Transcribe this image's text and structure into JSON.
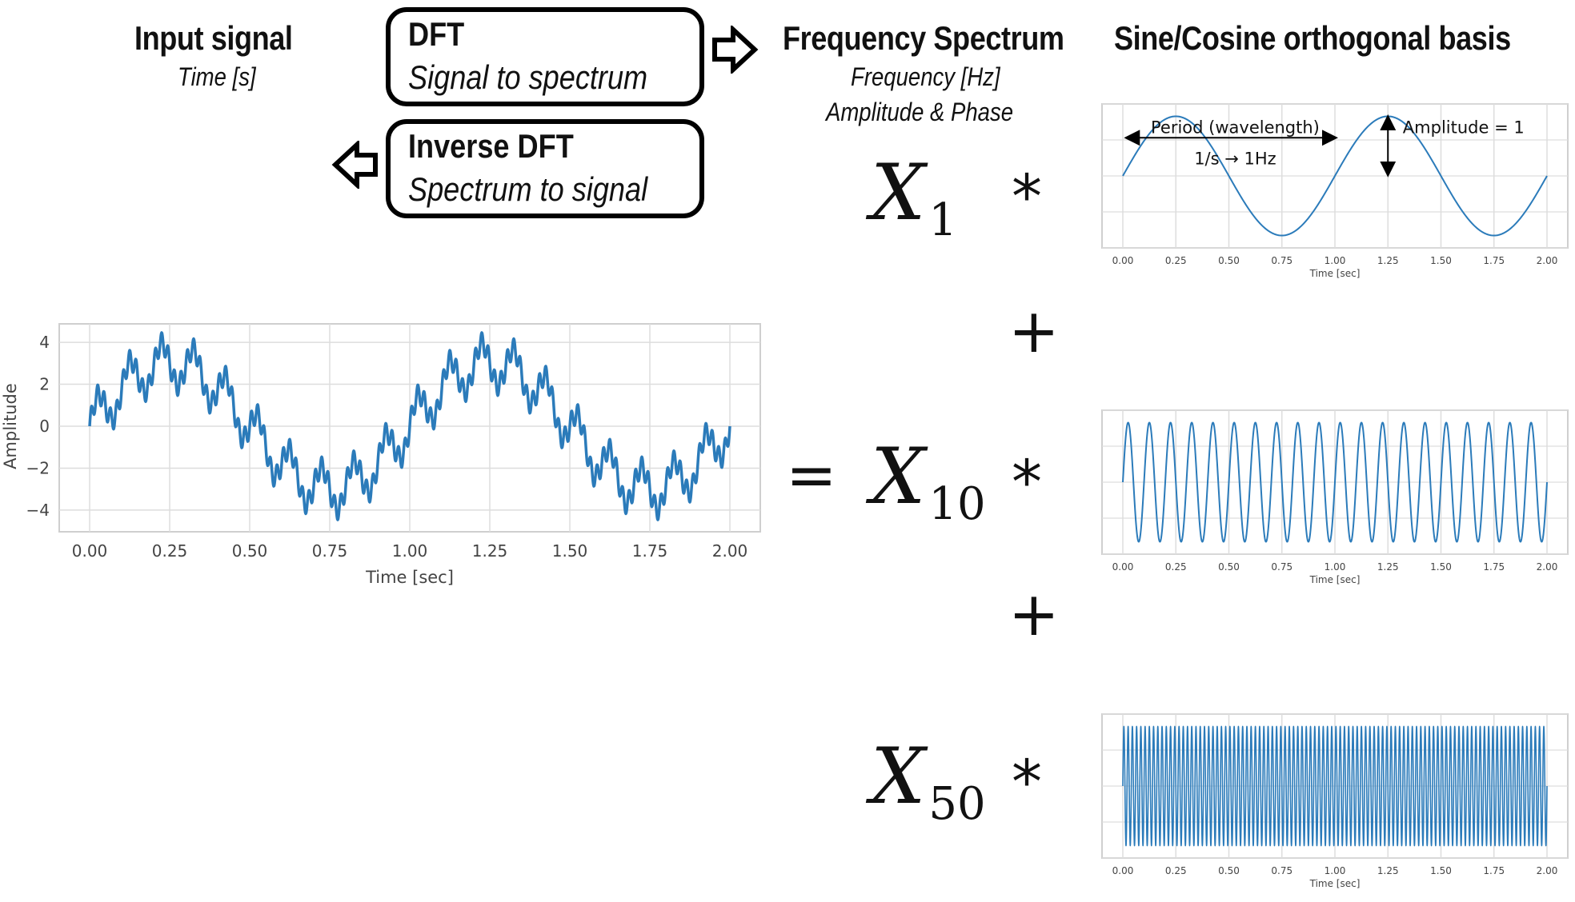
{
  "headers": {
    "input_title": "Input signal",
    "input_sub": "Time [s]",
    "spectrum_title": "Frequency Spectrum",
    "spectrum_sub1": "Frequency [Hz]",
    "spectrum_sub2": "Amplitude & Phase",
    "basis_title": "Sine/Cosine orthogonal basis"
  },
  "boxes": {
    "dft_title": "DFT",
    "dft_sub": "Signal to spectrum",
    "idft_title": "Inverse DFT",
    "idft_sub": "Spectrum to signal"
  },
  "equation": {
    "equals": "=",
    "times": "*",
    "plus": "+",
    "coef_symbol": "X",
    "coef_indices": [
      "1",
      "10",
      "50"
    ]
  },
  "annotations": {
    "period": "Period (wavelength)",
    "freq": "1/s → 1Hz",
    "amplitude": "Amplitude = 1"
  },
  "colors": {
    "line": "#2b7bba",
    "grid": "#dddddd",
    "frame": "#cfcfcf",
    "tick_text": "#444444"
  },
  "chart_data": [
    {
      "type": "line",
      "title": "",
      "xlabel": "Time [sec]",
      "ylabel": "Amplitude",
      "xlim": [
        0,
        2
      ],
      "ylim": [
        -4.5,
        4.5
      ],
      "xticks": [
        "0.00",
        "0.25",
        "0.50",
        "0.75",
        "1.00",
        "1.25",
        "1.50",
        "1.75",
        "2.00"
      ],
      "yticks": [
        "4",
        "2",
        "0",
        "−2",
        "−4"
      ],
      "grid": true,
      "series": [
        {
          "expression": "3·sin(2π·1·t) + 1·sin(2π·10·t) + 0.5·sin(2π·50·t)",
          "frequencies_hz": [
            1,
            10,
            50
          ],
          "amplitudes": [
            3,
            1,
            0.5
          ]
        }
      ]
    },
    {
      "type": "line",
      "xlabel": "Time [sec]",
      "xlim": [
        0,
        2
      ],
      "ylim": [
        -1.1,
        1.1
      ],
      "xticks": [
        "0.00",
        "0.25",
        "0.50",
        "0.75",
        "1.00",
        "1.25",
        "1.50",
        "1.75",
        "2.00"
      ],
      "grid": true,
      "series": [
        {
          "frequency_hz": 1,
          "amplitude": 1
        }
      ]
    },
    {
      "type": "line",
      "xlabel": "Time [sec]",
      "xlim": [
        0,
        2
      ],
      "ylim": [
        -1.1,
        1.1
      ],
      "xticks": [
        "0.00",
        "0.25",
        "0.50",
        "0.75",
        "1.00",
        "1.25",
        "1.50",
        "1.75",
        "2.00"
      ],
      "grid": true,
      "series": [
        {
          "frequency_hz": 10,
          "amplitude": 1
        }
      ]
    },
    {
      "type": "line",
      "xlabel": "Time [sec]",
      "xlim": [
        0,
        2
      ],
      "ylim": [
        -1.1,
        1.1
      ],
      "xticks": [
        "0.00",
        "0.25",
        "0.50",
        "0.75",
        "1.00",
        "1.25",
        "1.50",
        "1.75",
        "2.00"
      ],
      "grid": true,
      "series": [
        {
          "frequency_hz": 50,
          "amplitude": 1
        }
      ]
    }
  ]
}
